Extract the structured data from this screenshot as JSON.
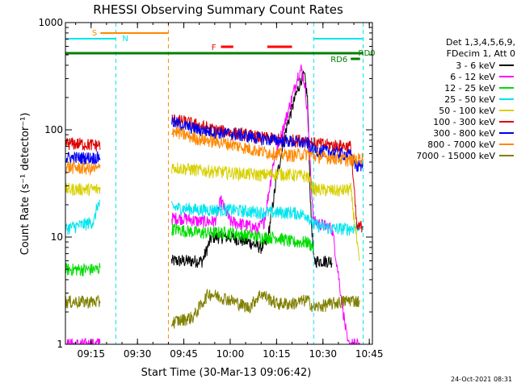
{
  "chart_data": {
    "type": "line",
    "title": "RHESSI Observing Summary Count Rates",
    "xlabel": "Start Time (30-Mar-13 09:06:42)",
    "ylabel": "Count Rate (s⁻¹ detector⁻¹)",
    "x_range": [
      "09:06:42",
      "10:46:00"
    ],
    "x_ticks": [
      "09:15",
      "09:30",
      "09:45",
      "10:00",
      "10:15",
      "10:30",
      "10:45"
    ],
    "y_scale": "log",
    "ylim": [
      1,
      1000
    ],
    "y_ticks": [
      "1",
      "10",
      "100",
      "1000"
    ],
    "legend": {
      "placement": "right",
      "header": [
        "Det 1,3,4,5,6,9,",
        "FDecim 1, Att 0"
      ],
      "entries": [
        {
          "label": "3 - 6 keV",
          "color": "#000000"
        },
        {
          "label": "6 - 12 keV",
          "color": "#ff00ff"
        },
        {
          "label": "12 - 25 keV",
          "color": "#00dd00"
        },
        {
          "label": "25 - 50 keV",
          "color": "#00e5ee"
        },
        {
          "label": "50 - 100 keV",
          "color": "#d8d000"
        },
        {
          "label": "100 - 300 keV",
          "color": "#dd0000"
        },
        {
          "label": "300 - 800 keV",
          "color": "#0000ee"
        },
        {
          "label": "800 - 7000 keV",
          "color": "#ff8800"
        },
        {
          "label": "7000 - 15000 keV",
          "color": "#808000"
        }
      ]
    },
    "flags": [
      {
        "label": "S",
        "color": "#ff8800",
        "start": "09:18",
        "end": "09:40"
      },
      {
        "label": "N",
        "color": "#00e5ee",
        "start": "09:06:42",
        "end": "09:23"
      },
      {
        "label": "N",
        "color": "#00e5ee",
        "start": "10:27",
        "end": "10:43"
      },
      {
        "label": "F",
        "color": "#ff0000",
        "start": "09:57",
        "end": "10:01"
      },
      {
        "label": "F",
        "color": "#ff0000",
        "start": "10:12",
        "end": "10:20"
      },
      {
        "label": "RD0",
        "color": "#008000",
        "start": "09:06:42",
        "end": "10:43"
      },
      {
        "label": "RD6",
        "color": "#008000",
        "start": "10:39",
        "end": "10:42"
      }
    ],
    "vertical_markers": [
      {
        "time": "09:23",
        "color": "#00e5ee",
        "style": "dashed"
      },
      {
        "time": "09:40",
        "color": "#ff8800",
        "style": "dashed"
      },
      {
        "time": "10:27",
        "color": "#00e5ee",
        "style": "dashed"
      },
      {
        "time": "10:43",
        "color": "#00e5ee",
        "style": "dashed"
      }
    ],
    "series": [
      {
        "name": "3 - 6 keV",
        "color": "#000000",
        "points": [
          [
            "09:41",
            6
          ],
          [
            "09:45",
            6
          ],
          [
            "09:48",
            6
          ],
          [
            "09:51",
            6
          ],
          [
            "09:54",
            10
          ],
          [
            "10:00",
            10
          ],
          [
            "10:06",
            9
          ],
          [
            "10:10",
            8
          ],
          [
            "10:12",
            9
          ],
          [
            "10:15",
            35
          ],
          [
            "10:18",
            100
          ],
          [
            "10:21",
            200
          ],
          [
            "10:23",
            300
          ],
          [
            "10:24",
            320
          ],
          [
            "10:25",
            200
          ],
          [
            "10:26",
            20
          ],
          [
            "10:27",
            6
          ],
          [
            "10:30",
            6
          ],
          [
            "10:33",
            6
          ]
        ]
      },
      {
        "name": "6 - 12 keV",
        "color": "#ff00ff",
        "points": [
          [
            "09:06:42",
            1
          ],
          [
            "09:12",
            1
          ],
          [
            "09:17",
            1
          ],
          [
            "09:41",
            15
          ],
          [
            "09:45",
            15
          ],
          [
            "09:50",
            14
          ],
          [
            "09:55",
            14
          ],
          [
            "09:57",
            22
          ],
          [
            "10:00",
            14
          ],
          [
            "10:05",
            13
          ],
          [
            "10:09",
            12
          ],
          [
            "10:11",
            14
          ],
          [
            "10:14",
            50
          ],
          [
            "10:17",
            100
          ],
          [
            "10:20",
            200
          ],
          [
            "10:22",
            330
          ],
          [
            "10:23",
            370
          ],
          [
            "10:24",
            280
          ],
          [
            "10:25",
            150
          ],
          [
            "10:26",
            40
          ],
          [
            "10:27",
            14
          ],
          [
            "10:33",
            12
          ],
          [
            "10:38",
            1
          ],
          [
            "10:42",
            1
          ]
        ]
      },
      {
        "name": "12 - 25 keV",
        "color": "#00dd00",
        "points": [
          [
            "09:06:42",
            5
          ],
          [
            "09:12",
            5
          ],
          [
            "09:17",
            5
          ],
          [
            "09:41",
            12
          ],
          [
            "09:50",
            11
          ],
          [
            "10:00",
            11
          ],
          [
            "10:10",
            10
          ],
          [
            "10:15",
            10
          ],
          [
            "10:20",
            9
          ],
          [
            "10:25",
            9
          ],
          [
            "10:27",
            8
          ]
        ]
      },
      {
        "name": "25 - 50 keV",
        "color": "#00e5ee",
        "points": [
          [
            "09:06:42",
            12
          ],
          [
            "09:12",
            13
          ],
          [
            "09:16",
            14
          ],
          [
            "09:17",
            20
          ],
          [
            "09:41",
            19
          ],
          [
            "09:50",
            18
          ],
          [
            "10:00",
            18
          ],
          [
            "10:10",
            17
          ],
          [
            "10:20",
            17
          ],
          [
            "10:25",
            16
          ],
          [
            "10:27",
            13
          ],
          [
            "10:33",
            12
          ],
          [
            "10:39",
            12
          ],
          [
            "10:42",
            13
          ]
        ]
      },
      {
        "name": "50 - 100 keV",
        "color": "#d8d000",
        "points": [
          [
            "09:06:42",
            28
          ],
          [
            "09:12",
            28
          ],
          [
            "09:17",
            28
          ],
          [
            "09:41",
            45
          ],
          [
            "09:50",
            42
          ],
          [
            "10:00",
            40
          ],
          [
            "10:10",
            38
          ],
          [
            "10:15",
            39
          ],
          [
            "10:20",
            38
          ],
          [
            "10:25",
            37
          ],
          [
            "10:27",
            28
          ],
          [
            "10:35",
            27
          ],
          [
            "10:39",
            28
          ],
          [
            "10:42",
            5
          ]
        ]
      },
      {
        "name": "100 - 300 keV",
        "color": "#dd0000",
        "points": [
          [
            "09:06:42",
            75
          ],
          [
            "09:12",
            74
          ],
          [
            "09:17",
            72
          ],
          [
            "09:41",
            125
          ],
          [
            "09:45",
            120
          ],
          [
            "09:50",
            110
          ],
          [
            "09:55",
            100
          ],
          [
            "10:00",
            95
          ],
          [
            "10:05",
            90
          ],
          [
            "10:10",
            85
          ],
          [
            "10:15",
            82
          ],
          [
            "10:20",
            80
          ],
          [
            "10:25",
            80
          ],
          [
            "10:27",
            75
          ],
          [
            "10:33",
            72
          ],
          [
            "10:39",
            70
          ],
          [
            "10:41",
            12
          ],
          [
            "10:43",
            13
          ]
        ]
      },
      {
        "name": "300 - 800 keV",
        "color": "#0000ee",
        "points": [
          [
            "09:06:42",
            55
          ],
          [
            "09:12",
            55
          ],
          [
            "09:17",
            55
          ],
          [
            "09:41",
            120
          ],
          [
            "09:45",
            110
          ],
          [
            "09:50",
            100
          ],
          [
            "09:55",
            95
          ],
          [
            "10:00",
            92
          ],
          [
            "10:05",
            88
          ],
          [
            "10:10",
            83
          ],
          [
            "10:15",
            80
          ],
          [
            "10:20",
            78
          ],
          [
            "10:25",
            75
          ],
          [
            "10:27",
            65
          ],
          [
            "10:33",
            62
          ],
          [
            "10:39",
            58
          ],
          [
            "10:41",
            45
          ],
          [
            "10:43",
            48
          ]
        ]
      },
      {
        "name": "800 - 7000 keV",
        "color": "#ff8800",
        "points": [
          [
            "09:06:42",
            45
          ],
          [
            "09:12",
            44
          ],
          [
            "09:17",
            43
          ],
          [
            "09:41",
            100
          ],
          [
            "09:45",
            90
          ],
          [
            "09:50",
            82
          ],
          [
            "09:55",
            78
          ],
          [
            "10:00",
            74
          ],
          [
            "10:05",
            68
          ],
          [
            "10:10",
            63
          ],
          [
            "10:15",
            60
          ],
          [
            "10:20",
            58
          ],
          [
            "10:25",
            60
          ],
          [
            "10:27",
            57
          ],
          [
            "10:33",
            55
          ],
          [
            "10:39",
            52
          ],
          [
            "10:43",
            55
          ]
        ]
      },
      {
        "name": "7000 - 15000 keV",
        "color": "#808000",
        "points": [
          [
            "09:06:42",
            2.5
          ],
          [
            "09:12",
            2.5
          ],
          [
            "09:17",
            2.5
          ],
          [
            "09:41",
            1.6
          ],
          [
            "09:48",
            1.8
          ],
          [
            "09:53",
            3
          ],
          [
            "10:00",
            2.6
          ],
          [
            "10:06",
            2.2
          ],
          [
            "10:10",
            3
          ],
          [
            "10:15",
            2.4
          ],
          [
            "10:20",
            2.4
          ],
          [
            "10:25",
            2.6
          ],
          [
            "10:27",
            2.2
          ],
          [
            "10:33",
            2.4
          ],
          [
            "10:39",
            2.6
          ],
          [
            "10:42",
            2.5
          ]
        ]
      }
    ]
  },
  "footer": {
    "timestamp": "24-Oct-2021 08:31"
  }
}
